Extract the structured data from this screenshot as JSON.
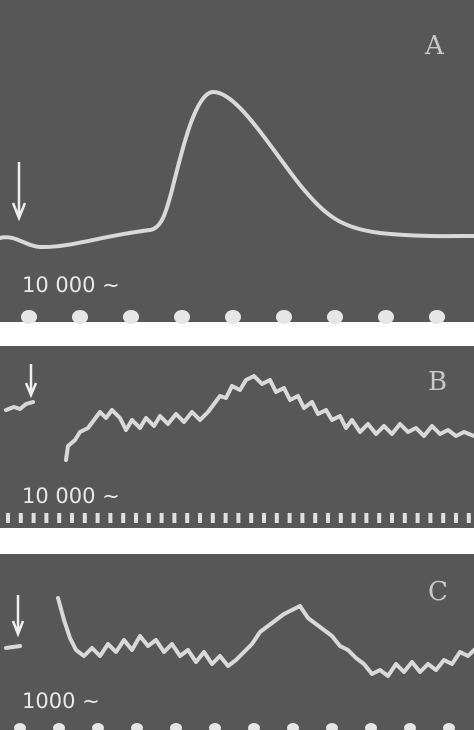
{
  "panels": [
    {
      "label": "A",
      "time_mark": "10 000 ∼"
    },
    {
      "label": "B",
      "time_mark": "10 000 ∼"
    },
    {
      "label": "C",
      "time_mark": "1000 ∼"
    }
  ]
}
